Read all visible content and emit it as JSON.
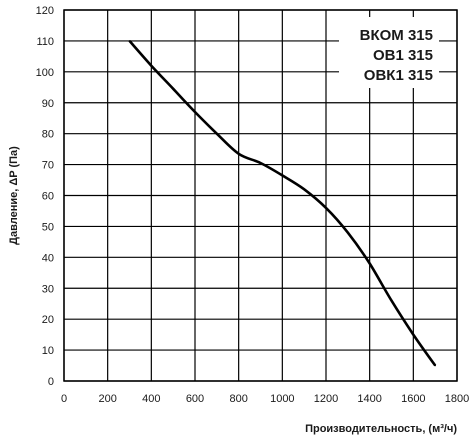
{
  "chart_data": {
    "type": "line",
    "title": "",
    "xlabel": "Производительность, (м³/ч)",
    "ylabel": "Давление, ΔP (Па)",
    "xlim": [
      0,
      1800
    ],
    "ylim": [
      0,
      120
    ],
    "grid": true,
    "x_ticks": [
      0,
      200,
      400,
      600,
      800,
      1000,
      1200,
      1400,
      1600,
      1800
    ],
    "y_ticks": [
      0,
      10,
      20,
      30,
      40,
      50,
      60,
      70,
      80,
      90,
      100,
      110,
      120
    ],
    "legend_position": "top-right",
    "model_labels": [
      "ВКОМ 315",
      "ОВ1 315",
      "ОВК1 315"
    ],
    "series": [
      {
        "x": [
          300,
          400,
          500,
          600,
          700,
          800,
          900,
          1000,
          1100,
          1200,
          1300,
          1400,
          1500,
          1600,
          1700
        ],
        "y": [
          110,
          102,
          94.5,
          87,
          80,
          73.5,
          70.5,
          66.5,
          62,
          56,
          48,
          38,
          26,
          15,
          5
        ]
      }
    ],
    "colors": {
      "line": "#000000",
      "grid": "#000000",
      "text": "#1a1a1a"
    }
  }
}
